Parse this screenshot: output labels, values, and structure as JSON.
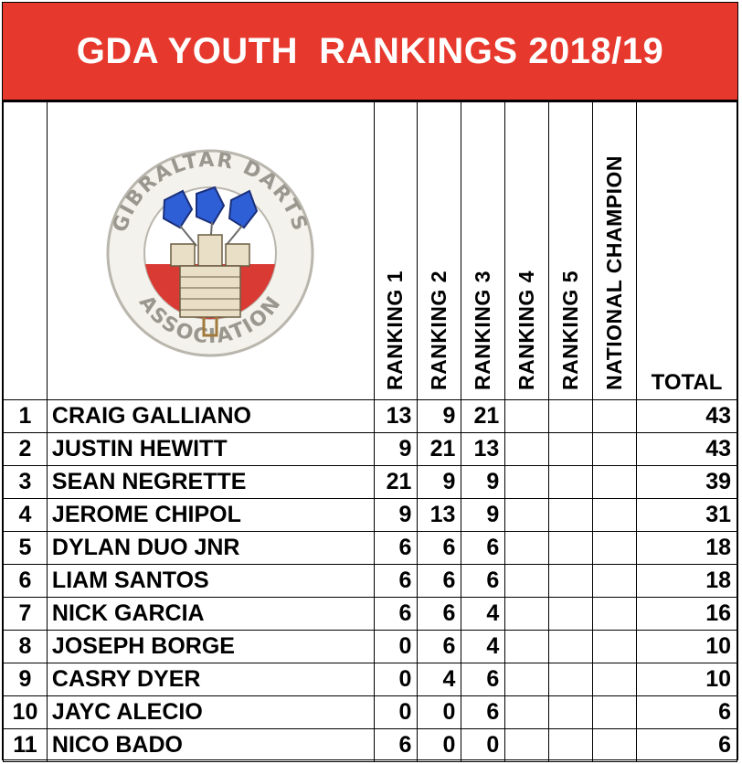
{
  "title": "GDA YOUTH  RANKINGS 2018/19",
  "logo": {
    "top_text": "GIBRALTAR DARTS",
    "bottom_text": "ASSOCIATION"
  },
  "columns": [
    "RANKING 1",
    "RANKING 2",
    "RANKING 3",
    "RANKING 4",
    "RANKING 5",
    "NATIONAL CHAMPION"
  ],
  "total_label": "TOTAL",
  "rows": [
    {
      "pos": "1",
      "name": "CRAIG GALLIANO",
      "r1": "13",
      "r2": "9",
      "r3": "21",
      "r4": "",
      "r5": "",
      "nc": "",
      "total": "43"
    },
    {
      "pos": "2",
      "name": "JUSTIN HEWITT",
      "r1": "9",
      "r2": "21",
      "r3": "13",
      "r4": "",
      "r5": "",
      "nc": "",
      "total": "43"
    },
    {
      "pos": "3",
      "name": "SEAN NEGRETTE",
      "r1": "21",
      "r2": "9",
      "r3": "9",
      "r4": "",
      "r5": "",
      "nc": "",
      "total": "39"
    },
    {
      "pos": "4",
      "name": "JEROME CHIPOL",
      "r1": "9",
      "r2": "13",
      "r3": "9",
      "r4": "",
      "r5": "",
      "nc": "",
      "total": "31"
    },
    {
      "pos": "5",
      "name": "DYLAN DUO JNR",
      "r1": "6",
      "r2": "6",
      "r3": "6",
      "r4": "",
      "r5": "",
      "nc": "",
      "total": "18"
    },
    {
      "pos": "6",
      "name": "LIAM SANTOS",
      "r1": "6",
      "r2": "6",
      "r3": "6",
      "r4": "",
      "r5": "",
      "nc": "",
      "total": "18"
    },
    {
      "pos": "7",
      "name": "NICK GARCIA",
      "r1": "6",
      "r2": "6",
      "r3": "4",
      "r4": "",
      "r5": "",
      "nc": "",
      "total": "16"
    },
    {
      "pos": "8",
      "name": "JOSEPH BORGE",
      "r1": "0",
      "r2": "6",
      "r3": "4",
      "r4": "",
      "r5": "",
      "nc": "",
      "total": "10"
    },
    {
      "pos": "9",
      "name": "CASRY DYER",
      "r1": "0",
      "r2": "4",
      "r3": "6",
      "r4": "",
      "r5": "",
      "nc": "",
      "total": "10"
    },
    {
      "pos": "10",
      "name": "JAYC ALECIO",
      "r1": "0",
      "r2": "0",
      "r3": "6",
      "r4": "",
      "r5": "",
      "nc": "",
      "total": "6"
    },
    {
      "pos": "11",
      "name": "NICO BADO",
      "r1": "6",
      "r2": "0",
      "r3": "0",
      "r4": "",
      "r5": "",
      "nc": "",
      "total": "6"
    }
  ],
  "colors": {
    "title_bg": "#e6382c",
    "title_text": "#ffffff",
    "logo_blue": "#2f5fd6",
    "logo_red": "#d93a34"
  }
}
